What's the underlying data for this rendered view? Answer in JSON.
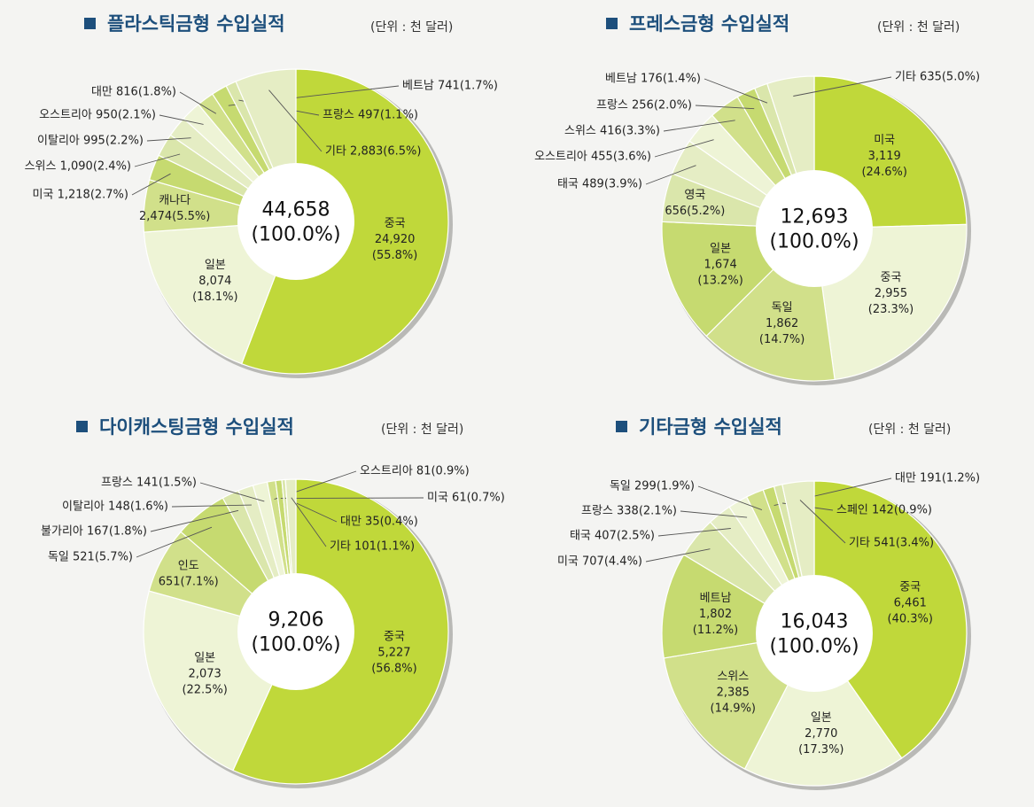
{
  "colors": {
    "background": "#f4f4f2",
    "title": "#1d4f7c",
    "title_square": "#1d4f7c",
    "leader": "#555555",
    "slice_stroke": "#ffffff",
    "palette": [
      "#c0d83a",
      "#eef4d6",
      "#d1e08a",
      "#c6da70",
      "#dae6ab",
      "#e5edc4"
    ]
  },
  "unit_label": "(단위 : 천 달러)",
  "chart_data": [
    {
      "type": "pie",
      "title": "플라스틱금형 수입실적",
      "unit": "(단위 : 천 달러)",
      "total": "44,658",
      "total_pct": "(100.0%)",
      "slices": [
        {
          "name": "중국",
          "value": 24920,
          "value_text": "24,920",
          "pct": "55.8%",
          "label_style": "inside"
        },
        {
          "name": "일본",
          "value": 8074,
          "value_text": "8,074",
          "pct": "18.1%",
          "label_style": "inside"
        },
        {
          "name": "캐나다",
          "value": 2474,
          "value_text": "2,474",
          "pct": "5.5%",
          "label_style": "inside2"
        },
        {
          "name": "미국",
          "value": 1218,
          "value_text": "1,218",
          "pct": "2.7%",
          "label_style": "outside"
        },
        {
          "name": "스위스",
          "value": 1090,
          "value_text": "1,090",
          "pct": "2.4%",
          "label_style": "outside"
        },
        {
          "name": "이탈리아",
          "value": 995,
          "value_text": "995",
          "pct": "2.2%",
          "label_style": "outside"
        },
        {
          "name": "오스트리아",
          "value": 950,
          "value_text": "950",
          "pct": "2.1%",
          "label_style": "outside"
        },
        {
          "name": "대만",
          "value": 816,
          "value_text": "816",
          "pct": "1.8%",
          "label_style": "outside"
        },
        {
          "name": "베트남",
          "value": 741,
          "value_text": "741",
          "pct": "1.7%",
          "label_style": "outside"
        },
        {
          "name": "프랑스",
          "value": 497,
          "value_text": "497",
          "pct": "1.1%",
          "label_style": "outside"
        },
        {
          "name": "기타",
          "value": 2883,
          "value_text": "2,883",
          "pct": "6.5%",
          "label_style": "outside"
        }
      ]
    },
    {
      "type": "pie",
      "title": "프레스금형 수입실적",
      "unit": "(단위 : 천 달러)",
      "total": "12,693",
      "total_pct": "(100.0%)",
      "slices": [
        {
          "name": "미국",
          "value": 3119,
          "value_text": "3,119",
          "pct": "24.6%",
          "label_style": "inside"
        },
        {
          "name": "중국",
          "value": 2955,
          "value_text": "2,955",
          "pct": "23.3%",
          "label_style": "inside"
        },
        {
          "name": "독일",
          "value": 1862,
          "value_text": "1,862",
          "pct": "14.7%",
          "label_style": "inside"
        },
        {
          "name": "일본",
          "value": 1674,
          "value_text": "1,674",
          "pct": "13.2%",
          "label_style": "inside"
        },
        {
          "name": "영국",
          "value": 656,
          "value_text": "656",
          "pct": "5.2%",
          "label_style": "inside2"
        },
        {
          "name": "태국",
          "value": 489,
          "value_text": "489",
          "pct": "3.9%",
          "label_style": "outside"
        },
        {
          "name": "오스트리아",
          "value": 455,
          "value_text": "455",
          "pct": "3.6%",
          "label_style": "outside"
        },
        {
          "name": "스위스",
          "value": 416,
          "value_text": "416",
          "pct": "3.3%",
          "label_style": "outside"
        },
        {
          "name": "프랑스",
          "value": 256,
          "value_text": "256",
          "pct": "2.0%",
          "label_style": "outside"
        },
        {
          "name": "베트남",
          "value": 176,
          "value_text": "176",
          "pct": "1.4%",
          "label_style": "outside"
        },
        {
          "name": "기타",
          "value": 635,
          "value_text": "635",
          "pct": "5.0%",
          "label_style": "outside"
        }
      ]
    },
    {
      "type": "pie",
      "title": "다이캐스팅금형 수입실적",
      "unit": "(단위 : 천 달러)",
      "total": "9,206",
      "total_pct": "(100.0%)",
      "slices": [
        {
          "name": "중국",
          "value": 5227,
          "value_text": "5,227",
          "pct": "56.8%",
          "label_style": "inside"
        },
        {
          "name": "일본",
          "value": 2073,
          "value_text": "2,073",
          "pct": "22.5%",
          "label_style": "inside"
        },
        {
          "name": "인도",
          "value": 651,
          "value_text": "651",
          "pct": "7.1%",
          "label_style": "inside2"
        },
        {
          "name": "독일",
          "value": 521,
          "value_text": "521",
          "pct": "5.7%",
          "label_style": "outside"
        },
        {
          "name": "불가리아",
          "value": 167,
          "value_text": "167",
          "pct": "1.8%",
          "label_style": "outside"
        },
        {
          "name": "이탈리아",
          "value": 148,
          "value_text": "148",
          "pct": "1.6%",
          "label_style": "outside"
        },
        {
          "name": "프랑스",
          "value": 141,
          "value_text": "141",
          "pct": "1.5%",
          "label_style": "outside"
        },
        {
          "name": "오스트리아",
          "value": 81,
          "value_text": "81",
          "pct": "0.9%",
          "label_style": "outside"
        },
        {
          "name": "미국",
          "value": 61,
          "value_text": "61",
          "pct": "0.7%",
          "label_style": "outside"
        },
        {
          "name": "대만",
          "value": 35,
          "value_text": "35",
          "pct": "0.4%",
          "label_style": "outside"
        },
        {
          "name": "기타",
          "value": 101,
          "value_text": "101",
          "pct": "1.1%",
          "label_style": "outside"
        }
      ]
    },
    {
      "type": "pie",
      "title": "기타금형 수입실적",
      "unit": "(단위 : 천 달러)",
      "total": "16,043",
      "total_pct": "(100.0%)",
      "slices": [
        {
          "name": "중국",
          "value": 6461,
          "value_text": "6,461",
          "pct": "40.3%",
          "label_style": "inside"
        },
        {
          "name": "일본",
          "value": 2770,
          "value_text": "2,770",
          "pct": "17.3%",
          "label_style": "inside"
        },
        {
          "name": "스위스",
          "value": 2385,
          "value_text": "2,385",
          "pct": "14.9%",
          "label_style": "inside"
        },
        {
          "name": "베트남",
          "value": 1802,
          "value_text": "1,802",
          "pct": "11.2%",
          "label_style": "inside"
        },
        {
          "name": "미국",
          "value": 707,
          "value_text": "707",
          "pct": "4.4%",
          "label_style": "outside"
        },
        {
          "name": "태국",
          "value": 407,
          "value_text": "407",
          "pct": "2.5%",
          "label_style": "outside"
        },
        {
          "name": "프랑스",
          "value": 338,
          "value_text": "338",
          "pct": "2.1%",
          "label_style": "outside"
        },
        {
          "name": "독일",
          "value": 299,
          "value_text": "299",
          "pct": "1.9%",
          "label_style": "outside"
        },
        {
          "name": "대만",
          "value": 191,
          "value_text": "191",
          "pct": "1.2%",
          "label_style": "outside"
        },
        {
          "name": "스페인",
          "value": 142,
          "value_text": "142",
          "pct": "0.9%",
          "label_style": "outside"
        },
        {
          "name": "기타",
          "value": 541,
          "value_text": "541",
          "pct": "3.4%",
          "label_style": "outside"
        }
      ]
    }
  ]
}
